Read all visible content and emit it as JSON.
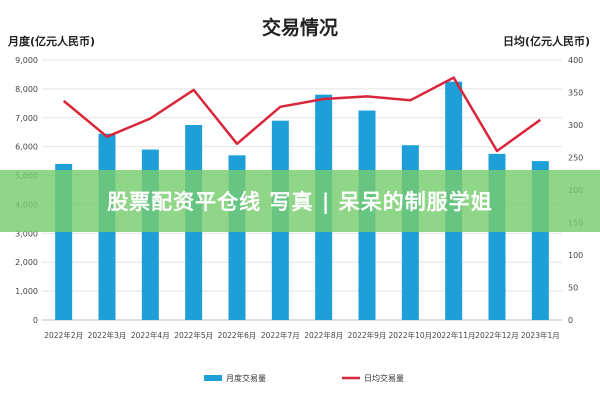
{
  "chart_data": {
    "type": "bar+line",
    "title": "交易情况",
    "categories": [
      "2022年2月",
      "2022年3月",
      "2022年4月",
      "2022年5月",
      "2022年6月",
      "2022年7月",
      "2022年8月",
      "2022年9月",
      "2022年10月",
      "2022年11月",
      "2022年12月",
      "2023年1月"
    ],
    "series": [
      {
        "name": "月度交易量",
        "kind": "bar",
        "axis": "left",
        "color": "#1e9fd8",
        "values": [
          5400,
          6450,
          5900,
          6750,
          5700,
          6900,
          7800,
          7250,
          6050,
          8250,
          5750,
          5500
        ]
      },
      {
        "name": "日均交易量",
        "kind": "line",
        "axis": "right",
        "color": "#d9263a",
        "values": [
          337,
          282,
          310,
          354,
          271,
          328,
          340,
          344,
          338,
          373,
          260,
          308
        ]
      }
    ],
    "ylabel_left": "月度(亿元人民币)",
    "ylabel_right": "日均(亿元人民币)",
    "ylim_left": [
      0,
      9000
    ],
    "ylim_right": [
      0,
      400
    ],
    "yticks_left": [
      "0",
      "1,000",
      "2,000",
      "3,000",
      "4,000",
      "5,000",
      "6,000",
      "7,000",
      "8,000",
      "9,000"
    ],
    "yticks_right": [
      "0",
      "50",
      "100",
      "150",
      "200",
      "250",
      "300",
      "350",
      "400"
    ],
    "grid": true,
    "legend": "bottom"
  },
  "overlay": {
    "text": "股票配资平仓线 写真 | 呆呆的制服学姐"
  }
}
